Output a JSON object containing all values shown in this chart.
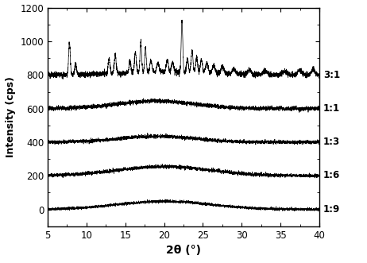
{
  "title": "",
  "xlabel": "2θ (°)",
  "ylabel": "Intensity (cps)",
  "xlim": [
    5,
    40
  ],
  "ylim": [
    -100,
    1200
  ],
  "yticks": [
    0,
    200,
    400,
    600,
    800,
    1000,
    1200
  ],
  "xticks": [
    5,
    10,
    15,
    20,
    25,
    30,
    35,
    40
  ],
  "labels": [
    "3:1",
    "1:1",
    "1:3",
    "1:6",
    "1:9"
  ],
  "offsets": [
    800,
    600,
    400,
    200,
    0
  ],
  "line_color": "#000000",
  "background_color": "#ffffff",
  "figsize": [
    4.62,
    3.31
  ],
  "dpi": 100
}
